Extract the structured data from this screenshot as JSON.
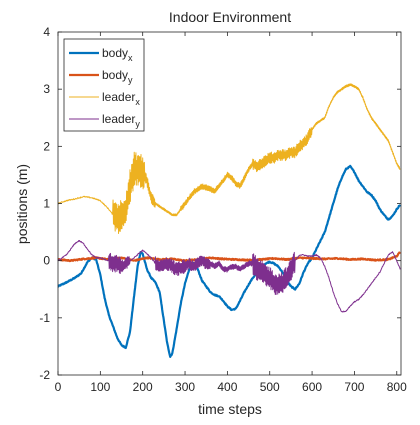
{
  "chart_data": {
    "type": "line",
    "title": "Indoor Environment",
    "xlabel": "time steps",
    "ylabel": "positions (m)",
    "xlim": [
      0,
      810
    ],
    "ylim": [
      -2,
      4
    ],
    "xticks": [
      0,
      100,
      200,
      300,
      400,
      500,
      600,
      700,
      800
    ],
    "yticks": [
      -2,
      -1,
      0,
      1,
      2,
      3,
      4
    ],
    "grid": false,
    "legend_position": "top-left",
    "series": [
      {
        "name": "body_x",
        "legend_base": "body",
        "legend_sub": "x",
        "color": "#0072BD",
        "line_width": 2.2,
        "points": [
          [
            0,
            -0.45
          ],
          [
            20,
            -0.38
          ],
          [
            40,
            -0.3
          ],
          [
            55,
            -0.22
          ],
          [
            60,
            -0.15
          ],
          [
            70,
            -0.02
          ],
          [
            80,
            0.05
          ],
          [
            90,
            0.02
          ],
          [
            100,
            -0.25
          ],
          [
            110,
            -0.65
          ],
          [
            120,
            -0.95
          ],
          [
            130,
            -1.15
          ],
          [
            140,
            -1.35
          ],
          [
            150,
            -1.48
          ],
          [
            160,
            -1.52
          ],
          [
            170,
            -1.25
          ],
          [
            180,
            -0.6
          ],
          [
            188,
            -0.1
          ],
          [
            195,
            0.15
          ],
          [
            200,
            0.12
          ],
          [
            210,
            -0.15
          ],
          [
            220,
            -0.3
          ],
          [
            230,
            -0.38
          ],
          [
            240,
            -0.55
          ],
          [
            250,
            -1.05
          ],
          [
            258,
            -1.45
          ],
          [
            265,
            -1.68
          ],
          [
            270,
            -1.62
          ],
          [
            280,
            -1.2
          ],
          [
            290,
            -0.75
          ],
          [
            300,
            -0.4
          ],
          [
            310,
            -0.15
          ],
          [
            320,
            -0.05
          ],
          [
            330,
            -0.15
          ],
          [
            340,
            -0.35
          ],
          [
            350,
            -0.45
          ],
          [
            360,
            -0.55
          ],
          [
            370,
            -0.6
          ],
          [
            380,
            -0.62
          ],
          [
            390,
            -0.7
          ],
          [
            400,
            -0.8
          ],
          [
            410,
            -0.86
          ],
          [
            420,
            -0.84
          ],
          [
            430,
            -0.7
          ],
          [
            440,
            -0.55
          ],
          [
            450,
            -0.42
          ],
          [
            460,
            -0.3
          ],
          [
            470,
            -0.22
          ],
          [
            480,
            -0.12
          ],
          [
            490,
            -0.05
          ],
          [
            500,
            -0.02
          ],
          [
            510,
            -0.05
          ],
          [
            520,
            -0.1
          ],
          [
            530,
            -0.2
          ],
          [
            540,
            -0.35
          ],
          [
            550,
            -0.45
          ],
          [
            560,
            -0.5
          ],
          [
            570,
            -0.4
          ],
          [
            580,
            -0.2
          ],
          [
            590,
            -0.05
          ],
          [
            600,
            0.05
          ],
          [
            610,
            0.2
          ],
          [
            620,
            0.35
          ],
          [
            630,
            0.5
          ],
          [
            640,
            0.75
          ],
          [
            650,
            1.0
          ],
          [
            660,
            1.25
          ],
          [
            670,
            1.45
          ],
          [
            680,
            1.6
          ],
          [
            690,
            1.65
          ],
          [
            700,
            1.55
          ],
          [
            710,
            1.4
          ],
          [
            720,
            1.3
          ],
          [
            730,
            1.2
          ],
          [
            740,
            1.15
          ],
          [
            750,
            1.05
          ],
          [
            760,
            0.9
          ],
          [
            770,
            0.8
          ],
          [
            780,
            0.72
          ],
          [
            790,
            0.78
          ],
          [
            800,
            0.9
          ],
          [
            808,
            0.98
          ]
        ]
      },
      {
        "name": "body_y",
        "legend_base": "body",
        "legend_sub": "y",
        "color": "#D95319",
        "line_width": 2.2,
        "points": [
          [
            0,
            0.02
          ],
          [
            30,
            0.0
          ],
          [
            60,
            0.03
          ],
          [
            90,
            0.05
          ],
          [
            120,
            0.02
          ],
          [
            150,
            0.05
          ],
          [
            180,
            0.0
          ],
          [
            210,
            0.05
          ],
          [
            240,
            0.02
          ],
          [
            270,
            0.03
          ],
          [
            300,
            0.0
          ],
          [
            330,
            0.02
          ],
          [
            360,
            0.05
          ],
          [
            390,
            0.03
          ],
          [
            420,
            0.02
          ],
          [
            450,
            0.01
          ],
          [
            480,
            0.02
          ],
          [
            510,
            0.04
          ],
          [
            540,
            0.02
          ],
          [
            570,
            0.05
          ],
          [
            600,
            0.04
          ],
          [
            630,
            0.03
          ],
          [
            660,
            0.04
          ],
          [
            690,
            0.02
          ],
          [
            720,
            0.03
          ],
          [
            750,
            0.01
          ],
          [
            780,
            0.02
          ],
          [
            800,
            0.08
          ],
          [
            808,
            0.15
          ]
        ]
      },
      {
        "name": "leader_x",
        "legend_base": "leader",
        "legend_sub": "x",
        "color": "#EDB120",
        "line_width": 1.0,
        "noise_ranges": [
          [
            130,
            205,
            0.3
          ],
          [
            205,
            230,
            0.1
          ],
          [
            230,
            290,
            0.02
          ],
          [
            290,
            460,
            0.05
          ],
          [
            460,
            600,
            0.1
          ],
          [
            600,
            808,
            0.02
          ]
        ],
        "points": [
          [
            0,
            1.0
          ],
          [
            20,
            1.05
          ],
          [
            40,
            1.08
          ],
          [
            60,
            1.12
          ],
          [
            80,
            1.1
          ],
          [
            100,
            1.05
          ],
          [
            120,
            0.9
          ],
          [
            130,
            0.8
          ],
          [
            140,
            0.75
          ],
          [
            150,
            0.78
          ],
          [
            160,
            0.9
          ],
          [
            170,
            1.3
          ],
          [
            180,
            1.6
          ],
          [
            190,
            1.6
          ],
          [
            200,
            1.55
          ],
          [
            210,
            1.4
          ],
          [
            220,
            1.1
          ],
          [
            230,
            1.0
          ],
          [
            240,
            0.95
          ],
          [
            250,
            0.9
          ],
          [
            260,
            0.85
          ],
          [
            270,
            0.8
          ],
          [
            280,
            0.8
          ],
          [
            290,
            0.9
          ],
          [
            300,
            1.0
          ],
          [
            310,
            1.1
          ],
          [
            320,
            1.2
          ],
          [
            330,
            1.25
          ],
          [
            340,
            1.3
          ],
          [
            350,
            1.28
          ],
          [
            360,
            1.25
          ],
          [
            370,
            1.22
          ],
          [
            380,
            1.3
          ],
          [
            390,
            1.4
          ],
          [
            400,
            1.5
          ],
          [
            410,
            1.45
          ],
          [
            420,
            1.35
          ],
          [
            430,
            1.3
          ],
          [
            440,
            1.45
          ],
          [
            450,
            1.6
          ],
          [
            460,
            1.7
          ],
          [
            470,
            1.65
          ],
          [
            480,
            1.7
          ],
          [
            490,
            1.75
          ],
          [
            500,
            1.8
          ],
          [
            510,
            1.8
          ],
          [
            520,
            1.85
          ],
          [
            530,
            1.85
          ],
          [
            540,
            1.85
          ],
          [
            550,
            1.9
          ],
          [
            560,
            1.9
          ],
          [
            570,
            2.0
          ],
          [
            580,
            2.05
          ],
          [
            590,
            2.15
          ],
          [
            600,
            2.3
          ],
          [
            610,
            2.4
          ],
          [
            620,
            2.45
          ],
          [
            630,
            2.5
          ],
          [
            640,
            2.7
          ],
          [
            650,
            2.85
          ],
          [
            660,
            2.95
          ],
          [
            670,
            3.0
          ],
          [
            680,
            3.05
          ],
          [
            690,
            3.08
          ],
          [
            700,
            3.05
          ],
          [
            710,
            3.0
          ],
          [
            720,
            2.85
          ],
          [
            730,
            2.65
          ],
          [
            740,
            2.5
          ],
          [
            750,
            2.4
          ],
          [
            760,
            2.3
          ],
          [
            770,
            2.2
          ],
          [
            780,
            2.1
          ],
          [
            790,
            1.9
          ],
          [
            800,
            1.7
          ],
          [
            808,
            1.6
          ]
        ]
      },
      {
        "name": "leader_y",
        "legend_base": "leader",
        "legend_sub": "y",
        "color": "#7E2F8E",
        "line_width": 1.0,
        "noise_ranges": [
          [
            120,
            150,
            0.15
          ],
          [
            150,
            170,
            0.1
          ],
          [
            230,
            300,
            0.12
          ],
          [
            300,
            360,
            0.1
          ],
          [
            360,
            460,
            0.05
          ],
          [
            460,
            560,
            0.2
          ]
        ],
        "points": [
          [
            0,
            0.0
          ],
          [
            20,
            0.1
          ],
          [
            40,
            0.3
          ],
          [
            50,
            0.35
          ],
          [
            60,
            0.3
          ],
          [
            70,
            0.2
          ],
          [
            80,
            0.1
          ],
          [
            90,
            0.05
          ],
          [
            100,
            0.05
          ],
          [
            110,
            0.02
          ],
          [
            120,
            0.0
          ],
          [
            130,
            -0.05
          ],
          [
            140,
            -0.05
          ],
          [
            150,
            -0.1
          ],
          [
            160,
            -0.05
          ],
          [
            170,
            0.0
          ],
          [
            180,
            0.05
          ],
          [
            190,
            0.12
          ],
          [
            200,
            0.18
          ],
          [
            210,
            0.12
          ],
          [
            220,
            0.05
          ],
          [
            230,
            -0.05
          ],
          [
            240,
            -0.1
          ],
          [
            250,
            -0.08
          ],
          [
            260,
            -0.05
          ],
          [
            270,
            -0.1
          ],
          [
            280,
            -0.15
          ],
          [
            290,
            -0.12
          ],
          [
            300,
            -0.1
          ],
          [
            310,
            -0.05
          ],
          [
            320,
            -0.1
          ],
          [
            330,
            -0.05
          ],
          [
            340,
            0.0
          ],
          [
            350,
            -0.05
          ],
          [
            360,
            -0.05
          ],
          [
            370,
            -0.1
          ],
          [
            380,
            -0.05
          ],
          [
            390,
            -0.15
          ],
          [
            400,
            -0.15
          ],
          [
            410,
            -0.1
          ],
          [
            420,
            -0.1
          ],
          [
            430,
            -0.15
          ],
          [
            440,
            -0.1
          ],
          [
            450,
            -0.05
          ],
          [
            460,
            -0.05
          ],
          [
            470,
            -0.15
          ],
          [
            480,
            -0.2
          ],
          [
            490,
            -0.25
          ],
          [
            500,
            -0.3
          ],
          [
            510,
            -0.38
          ],
          [
            520,
            -0.42
          ],
          [
            530,
            -0.38
          ],
          [
            540,
            -0.3
          ],
          [
            550,
            -0.15
          ],
          [
            560,
            0.0
          ],
          [
            570,
            0.1
          ],
          [
            580,
            0.1
          ],
          [
            590,
            0.08
          ],
          [
            600,
            0.08
          ],
          [
            610,
            0.1
          ],
          [
            620,
            0.05
          ],
          [
            630,
            -0.1
          ],
          [
            640,
            -0.3
          ],
          [
            650,
            -0.55
          ],
          [
            660,
            -0.75
          ],
          [
            670,
            -0.9
          ],
          [
            680,
            -0.88
          ],
          [
            690,
            -0.8
          ],
          [
            700,
            -0.72
          ],
          [
            710,
            -0.68
          ],
          [
            720,
            -0.6
          ],
          [
            730,
            -0.5
          ],
          [
            740,
            -0.4
          ],
          [
            750,
            -0.3
          ],
          [
            760,
            -0.2
          ],
          [
            770,
            -0.05
          ],
          [
            780,
            0.1
          ],
          [
            790,
            0.15
          ],
          [
            800,
            0.0
          ],
          [
            808,
            -0.15
          ]
        ]
      }
    ]
  }
}
